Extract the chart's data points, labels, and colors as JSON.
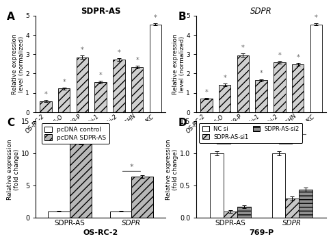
{
  "A_title": "SDPR-AS",
  "B_title": "SDPR",
  "AB_categories": [
    "OS-RC-2",
    "786-O",
    "769-P",
    "Caki-1",
    "Caki-2",
    "ACHN",
    "HKC"
  ],
  "A_values": [
    0.58,
    1.22,
    2.85,
    1.55,
    2.72,
    2.32,
    4.55
  ],
  "B_values": [
    0.7,
    1.42,
    2.95,
    1.65,
    2.58,
    2.48,
    4.55
  ],
  "A_errors": [
    0.04,
    0.06,
    0.08,
    0.06,
    0.08,
    0.07,
    0.06
  ],
  "B_errors": [
    0.04,
    0.06,
    0.08,
    0.06,
    0.08,
    0.07,
    0.06
  ],
  "AB_bar_colors": [
    "#d0d0d0",
    "#d0d0d0",
    "#d0d0d0",
    "#d0d0d0",
    "#d0d0d0",
    "#d0d0d0",
    "#ffffff"
  ],
  "AB_hatch": [
    "///",
    "///",
    "///",
    "///",
    "///",
    "///",
    ""
  ],
  "AB_ylabel": "Relative expression\nlevel (normalized)",
  "AB_ylim": [
    0,
    5
  ],
  "AB_yticks": [
    0,
    1,
    2,
    3,
    4,
    5
  ],
  "C_title": "OS-RC-2",
  "C_categories": [
    "SDPR-AS",
    "SDPR"
  ],
  "C_control_values": [
    1.0,
    1.0
  ],
  "C_treatment_values": [
    11.5,
    6.4
  ],
  "C_control_errors": [
    0.04,
    0.04
  ],
  "C_treatment_errors": [
    0.12,
    0.18
  ],
  "C_legend": [
    "pcDNA control",
    "pcDNA SDPR-AS"
  ],
  "C_bar_colors": [
    "#ffffff",
    "#b8b8b8"
  ],
  "C_hatch": [
    "",
    "///"
  ],
  "C_ylabel": "Relative expression\n(fold change)",
  "C_ylim": [
    0,
    15
  ],
  "C_yticks": [
    0,
    5,
    10,
    15
  ],
  "C_sig_lines": [
    [
      0,
      1,
      12.5
    ],
    [
      2,
      3,
      7.0
    ]
  ],
  "D_title": "769-P",
  "D_categories": [
    "SDPR-AS",
    "SDPR"
  ],
  "D_nc_values": [
    1.0,
    1.0
  ],
  "D_si1_values": [
    0.1,
    0.3
  ],
  "D_si2_values": [
    0.17,
    0.44
  ],
  "D_nc_errors": [
    0.03,
    0.03
  ],
  "D_si1_errors": [
    0.02,
    0.03
  ],
  "D_si2_errors": [
    0.02,
    0.03
  ],
  "D_legend": [
    "NC si",
    "SDPR-AS-si1",
    "SDPR-AS-si2"
  ],
  "D_bar_colors": [
    "#ffffff",
    "#c8c8c8",
    "#909090"
  ],
  "D_hatch": [
    "",
    "///",
    "---"
  ],
  "D_ylabel": "Relative expression\n(fold change)",
  "D_ylim": [
    0,
    1.5
  ],
  "D_yticks": [
    0.0,
    0.5,
    1.0,
    1.5
  ],
  "panel_labels": [
    "A",
    "B",
    "C",
    "D"
  ],
  "star_color": "#666666",
  "sig_line_color": "#666666"
}
